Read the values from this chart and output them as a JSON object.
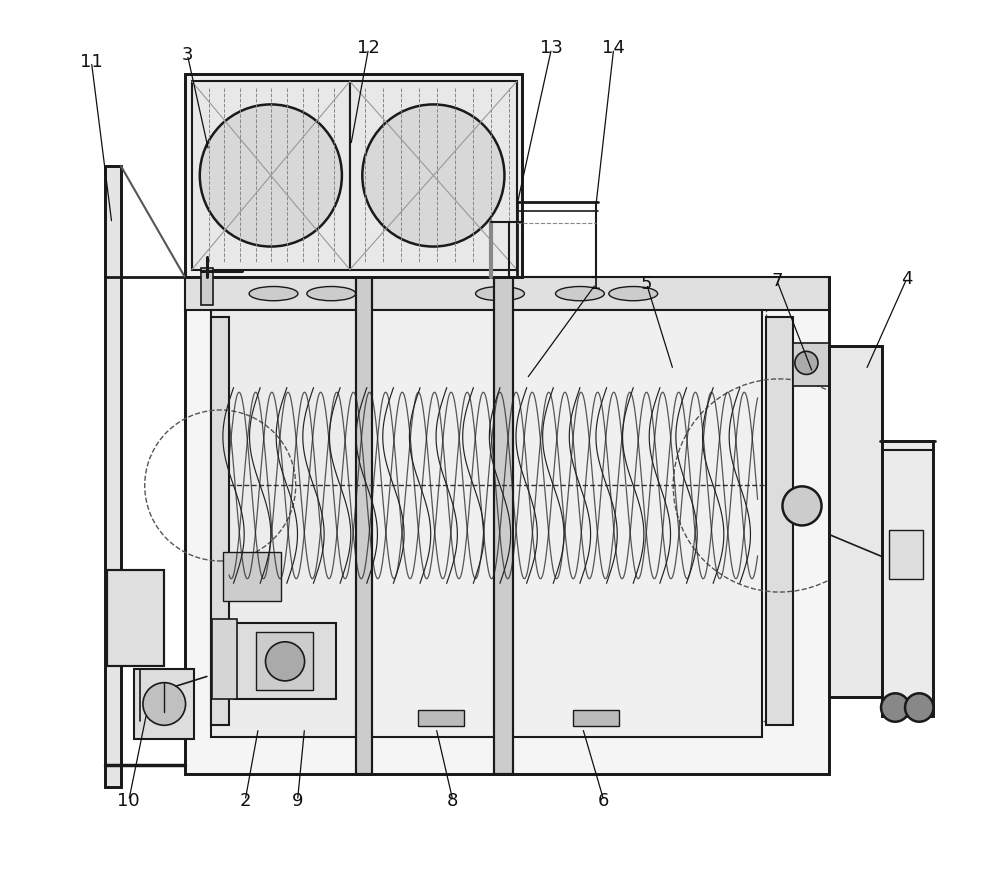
{
  "bg_color": "#ffffff",
  "line_color": "#1a1a1a",
  "line_width": 1.2,
  "fig_width": 10.0,
  "fig_height": 8.91
}
